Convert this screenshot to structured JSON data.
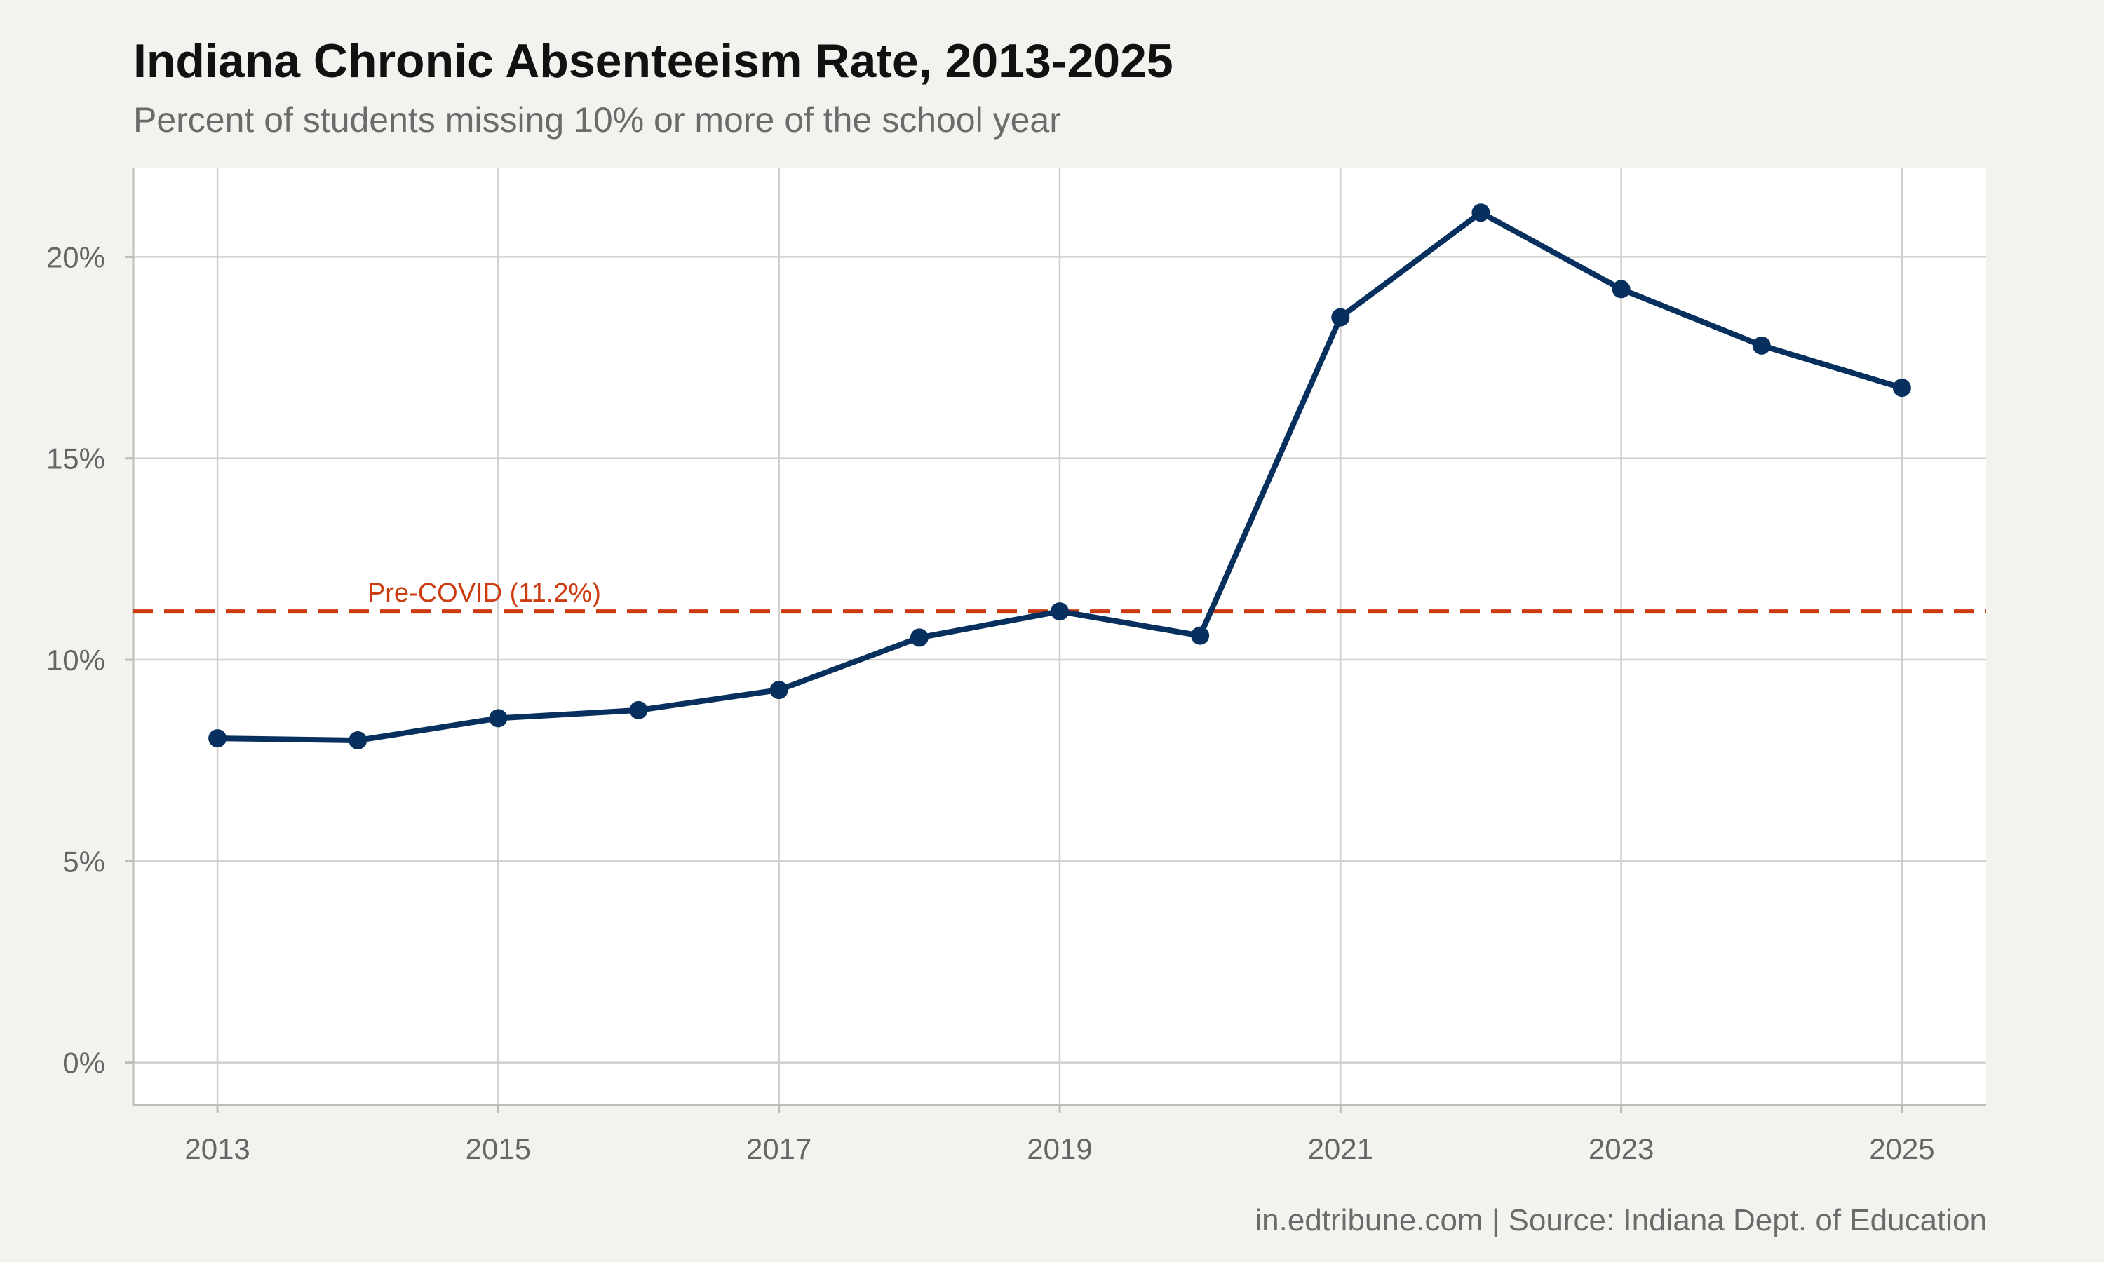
{
  "chart_data": {
    "type": "line",
    "title": "Indiana Chronic Absenteeism Rate, 2013-2025",
    "subtitle": "Percent of students missing 10% or more of the school year",
    "caption": "in.edtribune.com | Source: Indiana Dept. of Education",
    "xlabel": "",
    "ylabel": "",
    "x": [
      2013,
      2014,
      2015,
      2016,
      2017,
      2018,
      2019,
      2020,
      2021,
      2022,
      2023,
      2024,
      2025
    ],
    "series": [
      {
        "values": [
          8.05,
          8.0,
          8.55,
          8.75,
          9.25,
          10.55,
          11.2,
          10.6,
          18.5,
          21.1,
          19.2,
          17.8,
          16.75
        ],
        "color": "#08305e"
      }
    ],
    "xlim": [
      2012.4,
      2025.6
    ],
    "ylim": [
      -1.05,
      22.2
    ],
    "x_ticks": [
      2013,
      2015,
      2017,
      2019,
      2021,
      2023,
      2025
    ],
    "x_tick_labels": [
      "2013",
      "2015",
      "2017",
      "2019",
      "2021",
      "2023",
      "2025"
    ],
    "y_ticks": [
      0,
      5,
      10,
      15,
      20
    ],
    "y_tick_labels": [
      "0%",
      "5%",
      "10%",
      "15%",
      "20%"
    ],
    "reference_line": {
      "value": 11.2,
      "label": "Pre-COVID (11.2%)",
      "label_x": 2015,
      "color": "#cc3a10",
      "style": "dashed"
    },
    "grid": true,
    "legend": "none"
  },
  "colors": {
    "background": "#f4f2ee",
    "panel": "#ffffff",
    "grid": "#cfcfcb",
    "axis_text": "#666666"
  }
}
